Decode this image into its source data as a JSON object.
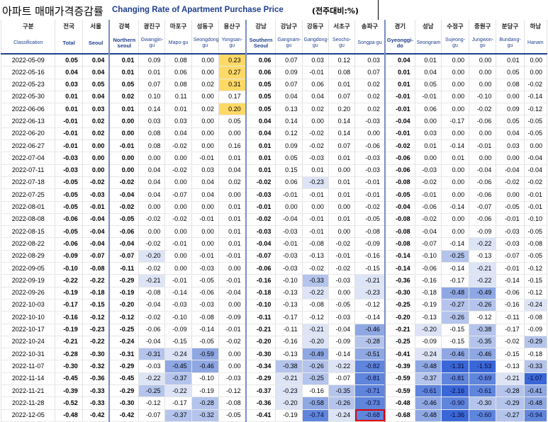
{
  "title": {
    "korean": "아파트 매매가격증감률",
    "english": "Changing Rate of Apartment Purchase Price",
    "unit": "(전주대비:%)"
  },
  "columns": [
    {
      "kr": "구분",
      "en": "Classification"
    },
    {
      "kr": "전국",
      "en": "Total"
    },
    {
      "kr": "서울",
      "en": "Seoul"
    },
    {
      "kr": "강북",
      "en": "Northern seoul"
    },
    {
      "kr": "광진구",
      "en": "Gwangjin-gu"
    },
    {
      "kr": "마포구",
      "en": "Mapo-gu"
    },
    {
      "kr": "성동구",
      "en": "Seongdong-gu"
    },
    {
      "kr": "용산구",
      "en": "Yongsan-gu"
    },
    {
      "kr": "강남",
      "en": "Southern Seoul"
    },
    {
      "kr": "강남구",
      "en": "Gangnam-gu"
    },
    {
      "kr": "강동구",
      "en": "Gangdong-gu"
    },
    {
      "kr": "서초구",
      "en": "Seocho-gu"
    },
    {
      "kr": "송파구",
      "en": "Songpa-gu"
    },
    {
      "kr": "경기",
      "en": "Gyeonggi-do"
    },
    {
      "kr": "성남",
      "en": "Seongnam"
    },
    {
      "kr": "수정구",
      "en": "Sujeong-gu"
    },
    {
      "kr": "중원구",
      "en": "Jungwon-gu"
    },
    {
      "kr": "분당구",
      "en": "Bundang-gu"
    },
    {
      "kr": "하남",
      "en": "Hanam"
    }
  ],
  "rows": [
    {
      "date": "2022-05-09",
      "v": [
        "0.05",
        "0.04",
        "0.01",
        "0.09",
        "0.08",
        "0.00",
        "0.23",
        "0.06",
        "0.07",
        "0.03",
        "0.12",
        "0.03",
        "0.04",
        "0.01",
        "0.00",
        "0.00",
        "0.01",
        "0.00"
      ]
    },
    {
      "date": "2022-05-16",
      "v": [
        "0.04",
        "0.04",
        "0.01",
        "0.01",
        "0.06",
        "0.00",
        "0.27",
        "0.06",
        "0.09",
        "-0.01",
        "0.08",
        "0.07",
        "0.01",
        "0.04",
        "0.00",
        "0.00",
        "0.05",
        "0.00"
      ]
    },
    {
      "date": "2022-05-23",
      "v": [
        "0.03",
        "0.05",
        "0.05",
        "0.07",
        "0.08",
        "0.02",
        "0.31",
        "0.05",
        "0.07",
        "0.06",
        "0.01",
        "0.02",
        "0.01",
        "0.05",
        "0.00",
        "0.00",
        "0.08",
        "-0.02"
      ]
    },
    {
      "date": "2022-05-30",
      "v": [
        "0.01",
        "0.04",
        "0.02",
        "0.10",
        "0.11",
        "0.00",
        "0.17",
        "0.05",
        "0.04",
        "0.04",
        "0.07",
        "0.02",
        "-0.01",
        "-0.01",
        "0.00",
        "-0.10",
        "0.00",
        "-0.14"
      ]
    },
    {
      "date": "2022-06-06",
      "v": [
        "0.01",
        "0.03",
        "0.01",
        "0.14",
        "0.01",
        "0.02",
        "0.20",
        "0.05",
        "0.13",
        "0.02",
        "0.20",
        "0.02",
        "-0.01",
        "0.06",
        "0.00",
        "-0.02",
        "0.09",
        "-0.12"
      ]
    },
    {
      "date": "2022-06-13",
      "v": [
        "-0.01",
        "0.02",
        "0.00",
        "0.03",
        "0.03",
        "0.00",
        "0.05",
        "0.04",
        "0.14",
        "0.00",
        "0.14",
        "-0.03",
        "-0.04",
        "0.00",
        "-0.17",
        "-0.06",
        "0.05",
        "-0.05"
      ]
    },
    {
      "date": "2022-06-20",
      "v": [
        "-0.01",
        "0.02",
        "0.00",
        "0.08",
        "0.04",
        "0.00",
        "0.00",
        "0.04",
        "0.12",
        "-0.02",
        "0.14",
        "0.00",
        "-0.01",
        "0.03",
        "0.00",
        "0.00",
        "0.04",
        "-0.05"
      ]
    },
    {
      "date": "2022-06-27",
      "v": [
        "-0.01",
        "0.00",
        "-0.01",
        "0.08",
        "-0.02",
        "0.00",
        "0.16",
        "0.01",
        "0.09",
        "-0.02",
        "0.07",
        "-0.06",
        "-0.02",
        "0.01",
        "-0.14",
        "-0.01",
        "0.03",
        "0.00"
      ]
    },
    {
      "date": "2022-07-04",
      "v": [
        "-0.03",
        "0.00",
        "0.00",
        "0.00",
        "0.00",
        "-0.01",
        "0.01",
        "0.01",
        "0.05",
        "-0.03",
        "0.01",
        "-0.03",
        "-0.06",
        "0.00",
        "0.01",
        "0.00",
        "0.00",
        "-0.04"
      ]
    },
    {
      "date": "2022-07-11",
      "v": [
        "-0.03",
        "0.00",
        "0.00",
        "0.04",
        "-0.02",
        "0.03",
        "0.04",
        "0.01",
        "0.15",
        "0.01",
        "0.00",
        "-0.03",
        "-0.06",
        "-0.03",
        "0.00",
        "-0.04",
        "-0.04",
        "-0.04"
      ]
    },
    {
      "date": "2022-07-18",
      "v": [
        "-0.05",
        "-0.02",
        "-0.02",
        "0.04",
        "0.00",
        "0.04",
        "0.02",
        "-0.02",
        "0.06",
        "-0.23",
        "0.01",
        "-0.01",
        "-0.08",
        "-0.02",
        "0.00",
        "-0.06",
        "-0.02",
        "-0.02"
      ]
    },
    {
      "date": "2022-07-25",
      "v": [
        "-0.05",
        "-0.03",
        "-0.04",
        "0.04",
        "-0.07",
        "0.04",
        "0.00",
        "-0.03",
        "-0.01",
        "-0.01",
        "0.01",
        "-0.01",
        "-0.05",
        "-0.01",
        "0.00",
        "-0.06",
        "0.00",
        "-0.01"
      ]
    },
    {
      "date": "2022-08-01",
      "v": [
        "-0.05",
        "-0.01",
        "-0.02",
        "0.00",
        "0.00",
        "0.00",
        "0.01",
        "-0.01",
        "0.00",
        "0.00",
        "0.00",
        "-0.02",
        "-0.04",
        "-0.06",
        "-0.14",
        "-0.07",
        "-0.05",
        "-0.01"
      ]
    },
    {
      "date": "2022-08-08",
      "v": [
        "-0.06",
        "-0.04",
        "-0.05",
        "-0.02",
        "-0.02",
        "-0.01",
        "0.01",
        "-0.02",
        "-0.04",
        "-0.01",
        "0.01",
        "-0.05",
        "-0.08",
        "-0.02",
        "0.00",
        "-0.06",
        "-0.01",
        "-0.10"
      ]
    },
    {
      "date": "2022-08-15",
      "v": [
        "-0.05",
        "-0.04",
        "-0.06",
        "0.00",
        "0.00",
        "0.00",
        "0.01",
        "-0.03",
        "-0.03",
        "-0.01",
        "0.00",
        "-0.08",
        "-0.08",
        "-0.04",
        "0.00",
        "-0.09",
        "-0.03",
        "-0.05"
      ]
    },
    {
      "date": "2022-08-22",
      "v": [
        "-0.06",
        "-0.04",
        "-0.04",
        "-0.02",
        "-0.01",
        "0.00",
        "0.01",
        "-0.04",
        "-0.01",
        "-0.08",
        "-0.02",
        "-0.09",
        "-0.08",
        "-0.07",
        "-0.14",
        "-0.22",
        "-0.03",
        "-0.08"
      ]
    },
    {
      "date": "2022-08-29",
      "v": [
        "-0.09",
        "-0.07",
        "-0.07",
        "-0.20",
        "0.00",
        "-0.01",
        "-0.01",
        "-0.07",
        "-0.03",
        "-0.13",
        "-0.01",
        "-0.16",
        "-0.14",
        "-0.10",
        "-0.25",
        "-0.13",
        "-0.07",
        "-0.05"
      ]
    },
    {
      "date": "2022-09-05",
      "v": [
        "-0.10",
        "-0.08",
        "-0.11",
        "-0.02",
        "0.00",
        "-0.03",
        "0.00",
        "-0.06",
        "-0.03",
        "-0.02",
        "-0.02",
        "-0.15",
        "-0.14",
        "-0.06",
        "-0.14",
        "-0.21",
        "-0.01",
        "-0.12"
      ]
    },
    {
      "date": "2022-09-19",
      "v": [
        "-0.22",
        "-0.22",
        "-0.29",
        "-0.21",
        "-0.01",
        "-0.05",
        "-0.01",
        "-0.16",
        "-0.10",
        "-0.33",
        "-0.03",
        "-0.21",
        "-0.36",
        "-0.16",
        "-0.17",
        "-0.22",
        "-0.14",
        "-0.15"
      ]
    },
    {
      "date": "2022-09-26",
      "v": [
        "-0.19",
        "-0.18",
        "-0.19",
        "-0.08",
        "-0.14",
        "-0.06",
        "-0.04",
        "-0.18",
        "-0.13",
        "-0.22",
        "0.00",
        "-0.23",
        "-0.30",
        "-0.18",
        "-0.48",
        "-0.49",
        "-0.06",
        "-0.12"
      ]
    },
    {
      "date": "2022-10-03",
      "v": [
        "-0.17",
        "-0.15",
        "-0.20",
        "-0.04",
        "-0.03",
        "-0.03",
        "0.00",
        "-0.10",
        "-0.13",
        "-0.08",
        "-0.05",
        "-0.12",
        "-0.25",
        "-0.19",
        "-0.27",
        "-0.26",
        "-0.16",
        "-0.24"
      ]
    },
    {
      "date": "2022-10-10",
      "v": [
        "-0.16",
        "-0.12",
        "-0.12",
        "-0.02",
        "-0.10",
        "-0.08",
        "-0.09",
        "-0.11",
        "-0.17",
        "-0.12",
        "-0.03",
        "-0.14",
        "-0.20",
        "-0.13",
        "-0.26",
        "-0.12",
        "-0.11",
        "-0.08"
      ]
    },
    {
      "date": "2022-10-17",
      "v": [
        "-0.19",
        "-0.23",
        "-0.25",
        "-0.06",
        "-0.09",
        "-0.14",
        "-0.01",
        "-0.21",
        "-0.11",
        "-0.21",
        "-0.04",
        "-0.46",
        "-0.21",
        "-0.20",
        "-0.15",
        "-0.38",
        "-0.17",
        "-0.09"
      ]
    },
    {
      "date": "2022-10-24",
      "v": [
        "-0.21",
        "-0.22",
        "-0.24",
        "-0.04",
        "-0.15",
        "-0.05",
        "-0.02",
        "-0.20",
        "-0.16",
        "-0.20",
        "-0.09",
        "-0.28",
        "-0.25",
        "-0.09",
        "-0.15",
        "-0.35",
        "-0.02",
        "-0.29"
      ]
    },
    {
      "date": "2022-10-31",
      "v": [
        "-0.28",
        "-0.30",
        "-0.31",
        "-0.31",
        "-0.24",
        "-0.59",
        "0.00",
        "-0.30",
        "-0.13",
        "-0.49",
        "-0.14",
        "-0.51",
        "-0.41",
        "-0.24",
        "-0.46",
        "-0.46",
        "-0.15",
        "-0.18"
      ]
    },
    {
      "date": "2022-11-07",
      "v": [
        "-0.30",
        "-0.32",
        "-0.29",
        "-0.03",
        "-0.45",
        "-0.46",
        "0.00",
        "-0.34",
        "-0.38",
        "-0.26",
        "-0.22",
        "-0.82",
        "-0.39",
        "-0.48",
        "-1.31",
        "-1.53",
        "-0.13",
        "-0.33"
      ]
    },
    {
      "date": "2022-11-14",
      "v": [
        "-0.45",
        "-0.36",
        "-0.45",
        "-0.22",
        "-0.37",
        "-0.10",
        "-0.03",
        "-0.29",
        "-0.21",
        "-0.25",
        "-0.07",
        "-0.81",
        "-0.59",
        "-0.37",
        "-0.81",
        "-0.69",
        "-0.21",
        "-1.07"
      ]
    },
    {
      "date": "2022-11-21",
      "v": [
        "-0.39",
        "-0.33",
        "-0.29",
        "-0.25",
        "-0.22",
        "-0.19",
        "-0.12",
        "-0.37",
        "-0.23",
        "-0.16",
        "-0.35",
        "-0.71",
        "-0.59",
        "-0.61",
        "-2.16",
        "-0.61",
        "-0.28",
        "-0.41"
      ]
    },
    {
      "date": "2022-11-28",
      "v": [
        "-0.52",
        "-0.33",
        "-0.30",
        "-0.12",
        "-0.17",
        "-0.28",
        "-0.08",
        "-0.36",
        "-0.20",
        "-0.58",
        "-0.26",
        "-0.73",
        "-0.48",
        "-0.46",
        "-0.90",
        "-0.30",
        "-0.29",
        "-0.48"
      ]
    },
    {
      "date": "2022-12-05",
      "v": [
        "-0.48",
        "-0.42",
        "-0.42",
        "-0.07",
        "-0.37",
        "-0.32",
        "-0.05",
        "-0.41",
        "-0.19",
        "-0.74",
        "-0.24",
        "-0.68",
        "-0.68",
        "-0.48",
        "-1.36",
        "-0.60",
        "-0.27",
        "-0.94"
      ]
    }
  ]
}
